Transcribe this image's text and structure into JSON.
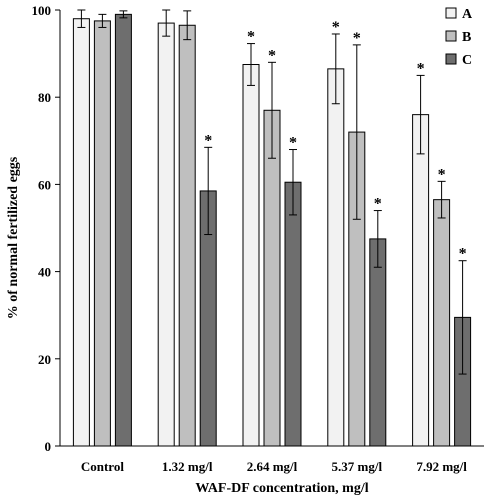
{
  "chart_data": {
    "type": "bar",
    "xlabel": "WAF-DF  concentration,  mg/l",
    "ylabel": "% of normal  fertilized  eggs",
    "ylim": [
      0,
      100
    ],
    "yticks": [
      "0",
      "20",
      "40",
      "60",
      "80",
      "100"
    ],
    "categories": [
      "Control",
      "1.32 mg/l",
      "2.64 mg/l",
      "5.37 mg/l",
      "7.92 mg/l"
    ],
    "legend_position": "top-right",
    "series": [
      {
        "name": "A",
        "color": "#f2f2f2",
        "values": [
          98,
          97,
          87.5,
          86.5,
          76
        ],
        "errors": [
          2,
          3,
          4.8,
          8,
          9
        ],
        "significant": [
          false,
          false,
          true,
          true,
          true
        ]
      },
      {
        "name": "B",
        "color": "#bfbfbf",
        "values": [
          97.5,
          96.5,
          77,
          72,
          56.5
        ],
        "errors": [
          1.5,
          3.3,
          11,
          20,
          4.2
        ],
        "significant": [
          false,
          false,
          true,
          true,
          true
        ]
      },
      {
        "name": "C",
        "color": "#6e6e6e",
        "values": [
          99,
          58.5,
          60.5,
          47.5,
          29.5
        ],
        "errors": [
          0.8,
          10,
          7.5,
          6.5,
          13
        ],
        "significant": [
          false,
          true,
          true,
          true,
          true
        ]
      }
    ],
    "significance_marker": "*"
  }
}
